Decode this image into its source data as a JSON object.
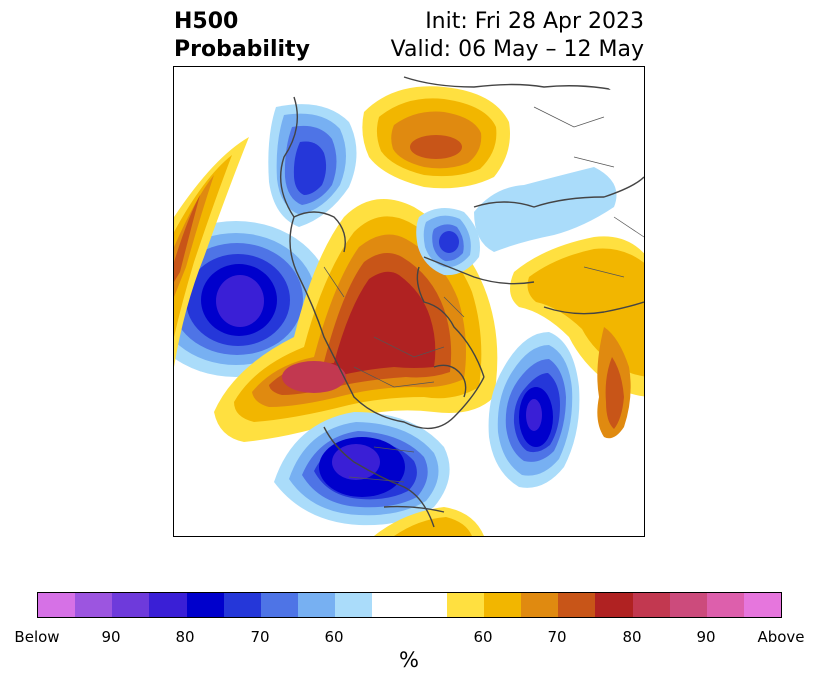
{
  "title": {
    "left_line1": "H500",
    "left_line2": "Probability",
    "right_line1": "Init: Fri 28 Apr 2023",
    "right_line2": "Valid: 06 May – 12 May"
  },
  "colorbar": {
    "colors": [
      "#d671e6",
      "#9c55e0",
      "#6e3adb",
      "#3a1fd6",
      "#0000cc",
      "#2537d9",
      "#4e74e6",
      "#77b0f2",
      "#aadcfa",
      "#ffffff",
      "#ffffff",
      "#ffe040",
      "#f2b600",
      "#e08a10",
      "#c85518",
      "#b02222",
      "#c23850",
      "#cc4b7c",
      "#dd5fac",
      "#e676dd"
    ],
    "tick_labels": [
      "Below",
      "90",
      "80",
      "70",
      "60",
      "60",
      "70",
      "80",
      "90",
      "Above"
    ],
    "unit": "%"
  },
  "map": {
    "projection": "north-polar-stereographic",
    "variable": "500 hPa geopotential height probability",
    "features": [
      {
        "name": "north-pacific-low",
        "sign": "below",
        "peak": "80"
      },
      {
        "name": "eastern-us-low",
        "sign": "below",
        "peak": "80"
      },
      {
        "name": "western-atlantic-low",
        "sign": "below",
        "peak": "80"
      },
      {
        "name": "northern-europe-low",
        "sign": "below",
        "peak": "70"
      },
      {
        "name": "east-siberia-low",
        "sign": "below",
        "peak": "70"
      },
      {
        "name": "canada-arctic-high",
        "sign": "above",
        "peak": "80"
      },
      {
        "name": "gulf-of-alaska-high",
        "sign": "above",
        "peak": "85"
      },
      {
        "name": "siberia-high",
        "sign": "above",
        "peak": "70"
      },
      {
        "name": "greenland-arctic-high",
        "sign": "above",
        "peak": "75"
      },
      {
        "name": "iberia-high",
        "sign": "above",
        "peak": "75"
      }
    ]
  }
}
